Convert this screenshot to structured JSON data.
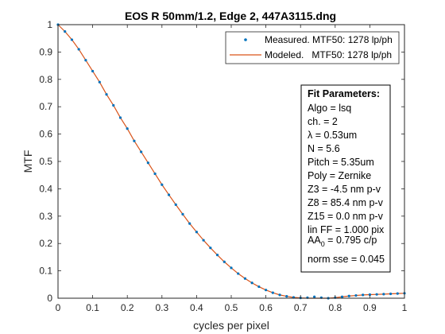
{
  "chart_data": {
    "type": "line",
    "title": "EOS R 50mm/1.2, Edge 2, 447A3115.dng",
    "xlabel": "cycles per pixel",
    "ylabel": "MTF",
    "xlim": [
      0,
      1
    ],
    "ylim": [
      0,
      1
    ],
    "x_ticks": [
      "0",
      "0.1",
      "0.2",
      "0.3",
      "0.4",
      "0.5",
      "0.6",
      "0.7",
      "0.8",
      "0.9",
      "1"
    ],
    "y_ticks": [
      "0",
      "0.1",
      "0.2",
      "0.3",
      "0.4",
      "0.5",
      "0.6",
      "0.7",
      "0.8",
      "0.9",
      "1"
    ],
    "grid": false,
    "legend_position": "top-right",
    "legend": [
      {
        "label": "Measured. MTF50: 1278 lp/ph",
        "style": "dots",
        "color": "#0072BD"
      },
      {
        "label": "Modeled.   MTF50: 1278 lp/ph",
        "style": "line",
        "color": "#D95319"
      }
    ],
    "series": [
      {
        "name": "Measured. MTF50: 1278 lp/ph",
        "style": "dots",
        "color": "#0072BD",
        "x": [
          0,
          0.02,
          0.04,
          0.06,
          0.08,
          0.1,
          0.12,
          0.14,
          0.16,
          0.18,
          0.2,
          0.22,
          0.24,
          0.26,
          0.28,
          0.3,
          0.32,
          0.34,
          0.36,
          0.38,
          0.4,
          0.42,
          0.44,
          0.46,
          0.48,
          0.5,
          0.52,
          0.54,
          0.56,
          0.58,
          0.6,
          0.62,
          0.64,
          0.66,
          0.68,
          0.7,
          0.72,
          0.74,
          0.76,
          0.78,
          0.8,
          0.82,
          0.84,
          0.86,
          0.88,
          0.9,
          0.92,
          0.94,
          0.96,
          0.98,
          1.0
        ],
        "y": [
          1.0,
          0.975,
          0.945,
          0.91,
          0.87,
          0.83,
          0.79,
          0.745,
          0.705,
          0.66,
          0.62,
          0.575,
          0.535,
          0.495,
          0.455,
          0.415,
          0.378,
          0.342,
          0.307,
          0.273,
          0.242,
          0.212,
          0.184,
          0.158,
          0.133,
          0.111,
          0.09,
          0.072,
          0.056,
          0.042,
          0.03,
          0.02,
          0.012,
          0.007,
          0.003,
          0.001,
          0.002,
          0.005,
          0.002,
          0.0,
          0.002,
          0.005,
          0.008,
          0.01,
          0.012,
          0.013,
          0.014,
          0.015,
          0.016,
          0.017,
          0.018
        ]
      },
      {
        "name": "Modeled.   MTF50: 1278 lp/ph",
        "style": "line",
        "color": "#D95319",
        "x": [
          0,
          0.02,
          0.04,
          0.06,
          0.08,
          0.1,
          0.12,
          0.14,
          0.16,
          0.18,
          0.2,
          0.22,
          0.24,
          0.26,
          0.28,
          0.3,
          0.32,
          0.34,
          0.36,
          0.38,
          0.4,
          0.42,
          0.44,
          0.46,
          0.48,
          0.5,
          0.52,
          0.54,
          0.56,
          0.58,
          0.6,
          0.62,
          0.64,
          0.66,
          0.68,
          0.7,
          0.72,
          0.74,
          0.76,
          0.78,
          0.8,
          0.82,
          0.84,
          0.86,
          0.88,
          0.9,
          0.92,
          0.94,
          0.96,
          0.98,
          1.0
        ],
        "y": [
          1.0,
          0.975,
          0.945,
          0.91,
          0.87,
          0.83,
          0.79,
          0.745,
          0.705,
          0.66,
          0.62,
          0.575,
          0.535,
          0.495,
          0.455,
          0.415,
          0.378,
          0.342,
          0.307,
          0.273,
          0.242,
          0.212,
          0.184,
          0.158,
          0.133,
          0.111,
          0.09,
          0.072,
          0.056,
          0.042,
          0.03,
          0.02,
          0.012,
          0.007,
          0.003,
          0.001,
          0.0,
          0.0,
          0.0,
          0.0,
          0.002,
          0.005,
          0.008,
          0.01,
          0.012,
          0.013,
          0.014,
          0.015,
          0.016,
          0.017,
          0.018
        ]
      }
    ],
    "annotation_box": {
      "position": "right",
      "title": "Fit Parameters:",
      "lines": [
        "Algo = lsq",
        "ch. = 2",
        "λ = 0.53um",
        "N = 5.6",
        "Pitch = 5.35um",
        "Poly = Zernike",
        "Z3 = -4.5 nm p-v",
        "Z8 = 85.4 nm p-v",
        "Z15 = 0.0 nm p-v",
        "lin FF = 1.000 pix"
      ],
      "aa_label": "AA",
      "aa_subscript": "0",
      "aa_value": " = 0.795 c/p",
      "last_line": "norm sse = 0.045"
    }
  }
}
